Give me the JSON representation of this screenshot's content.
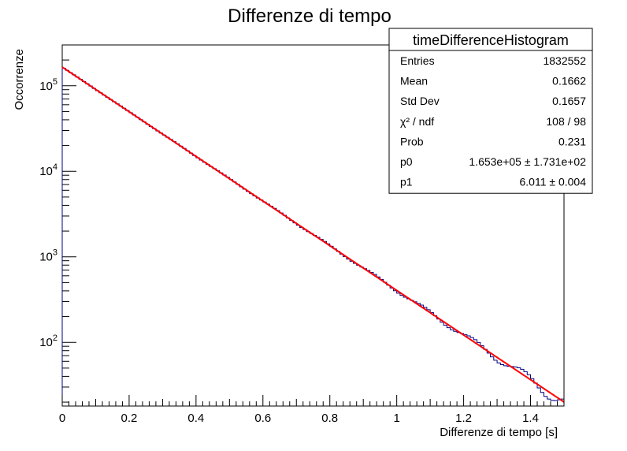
{
  "chart_data": {
    "type": "histogram",
    "title": "Differenze di tempo",
    "xlabel": "Differenze di tempo [s]",
    "ylabel": "Occorrenze",
    "xlim": [
      0,
      1.5
    ],
    "ylim": [
      18,
      300000
    ],
    "y_scale": "log",
    "x_ticks": [
      0,
      0.2,
      0.4,
      0.6,
      0.8,
      1,
      1.2,
      1.4
    ],
    "x_tick_labels": [
      "0",
      "0.2",
      "0.4",
      "0.6",
      "0.8",
      "1",
      "1.2",
      "1.4"
    ],
    "y_ticks": [
      100,
      1000,
      10000,
      100000
    ],
    "y_tick_labels": [
      {
        "base": "10",
        "exp": "2"
      },
      {
        "base": "10",
        "exp": "3"
      },
      {
        "base": "10",
        "exp": "4"
      },
      {
        "base": "10",
        "exp": "5"
      }
    ],
    "bins": {
      "n": 150,
      "min": 0,
      "max": 1.5
    },
    "fit": {
      "function": "p0*exp(-p1*x)",
      "p0": 165300,
      "p1": 6.011,
      "color": "#ff0000"
    },
    "histogram_color": "#000080",
    "grid": false,
    "stats_box": {
      "title": "timeDifferenceHistogram",
      "rows": [
        {
          "label": "Entries",
          "value": "1832552"
        },
        {
          "label": "Mean",
          "value": "0.1662"
        },
        {
          "label": "Std Dev",
          "value": "0.1657"
        },
        {
          "label": "χ² / ndf",
          "value": "108 / 98"
        },
        {
          "label": "Prob",
          "value": "0.231"
        },
        {
          "label": "p0",
          "value": "1.653e+05  ± 1.731e+02"
        },
        {
          "label": "p1",
          "value": "6.011 ± 0.004"
        }
      ],
      "placement": "top-right"
    }
  }
}
